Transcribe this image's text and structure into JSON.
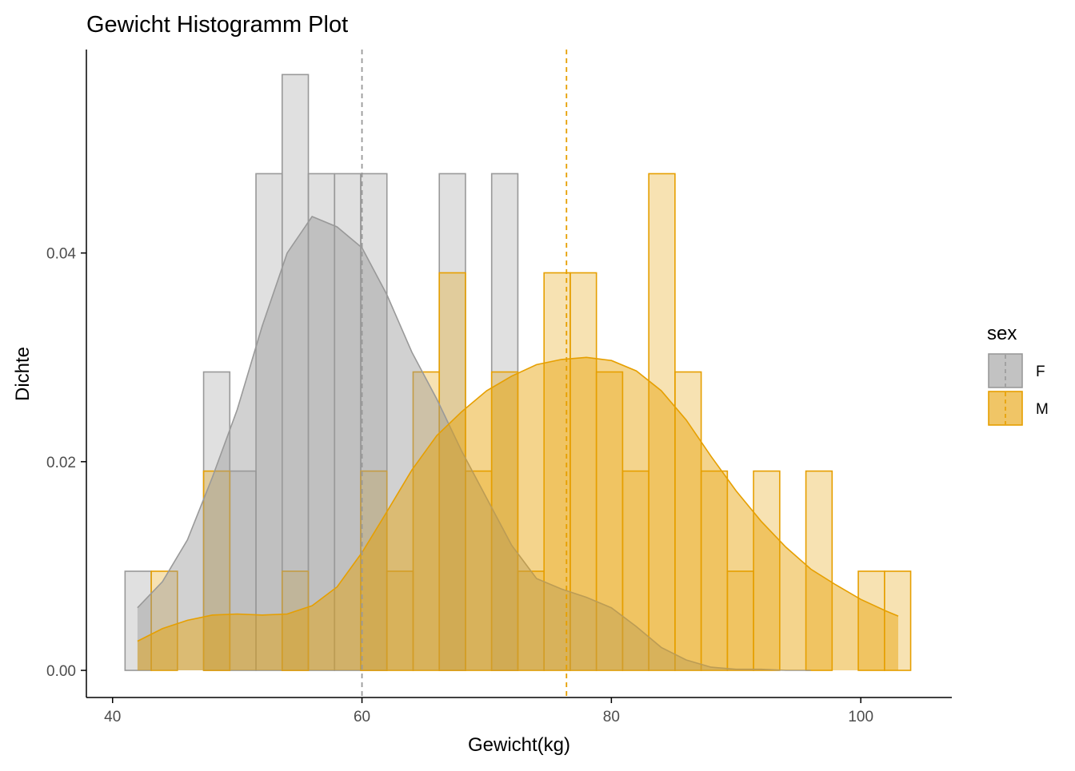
{
  "chart_data": {
    "type": "histogram",
    "title": "Gewicht Histogramm Plot",
    "xlabel": "Gewicht(kg)",
    "ylabel": "Dichte",
    "xlim": [
      37.9,
      107.3
    ],
    "ylim": [
      -0.0026,
      0.0595
    ],
    "x_ticks": [
      40,
      60,
      80,
      100
    ],
    "x_tick_labels": [
      "40",
      "60",
      "80",
      "100"
    ],
    "y_ticks": [
      0.0,
      0.02,
      0.04
    ],
    "y_tick_labels": [
      "0.00",
      "0.02",
      "0.04"
    ],
    "grid": false,
    "bin_width": 2.1,
    "bin_starts": [
      41.0,
      43.1,
      45.2,
      47.3,
      49.4,
      51.5,
      53.6,
      55.7,
      57.8,
      59.9,
      62.0,
      64.1,
      66.2,
      68.3,
      70.4,
      72.5,
      74.6,
      76.7,
      78.8,
      80.9,
      83.0,
      85.1,
      87.2,
      89.3,
      91.4,
      93.5,
      95.6,
      97.7,
      99.8,
      101.9
    ],
    "legend": {
      "title": "sex",
      "position": "right",
      "entries": [
        {
          "label": "F",
          "fill": "#999999",
          "stroke": "#999999"
        },
        {
          "label": "M",
          "fill": "#E69F00",
          "stroke": "#E69F00"
        }
      ]
    },
    "series": [
      {
        "name": "F",
        "color": "#999999",
        "hist_density": [
          0.0095,
          0,
          0,
          0.0286,
          0.0191,
          0.0476,
          0.0571,
          0.0476,
          0.0476,
          0.0476,
          0,
          0,
          0.0476,
          0,
          0.0476,
          0,
          0,
          0,
          0,
          0,
          0,
          0,
          0,
          0,
          0,
          0,
          0,
          0,
          0,
          0
        ],
        "mean": 60.0,
        "density_curve": {
          "x": [
            42,
            44,
            46,
            48,
            50,
            52,
            54,
            56,
            58,
            60,
            62,
            64,
            66,
            68,
            70,
            72,
            74,
            76,
            78,
            80,
            82,
            84,
            86,
            88,
            90,
            92,
            94,
            96
          ],
          "y": [
            0.006,
            0.0085,
            0.0125,
            0.0185,
            0.025,
            0.033,
            0.04,
            0.0435,
            0.0425,
            0.0405,
            0.036,
            0.0305,
            0.026,
            0.021,
            0.0165,
            0.012,
            0.0088,
            0.0078,
            0.007,
            0.006,
            0.0042,
            0.0022,
            0.001,
            0.0003,
            0.0001,
            0.0001,
            0.0,
            0.0
          ]
        }
      },
      {
        "name": "M",
        "color": "#E69F00",
        "hist_density": [
          0,
          0.0095,
          0,
          0.0191,
          0,
          0,
          0.0095,
          0,
          0,
          0.0191,
          0.0095,
          0.0286,
          0.0381,
          0.0191,
          0.0286,
          0.0095,
          0.0381,
          0.0381,
          0.0286,
          0.0191,
          0.0476,
          0.0286,
          0.0191,
          0.0095,
          0.0191,
          0,
          0.0191,
          0,
          0.0095,
          0.0095
        ],
        "mean": 76.4,
        "density_curve": {
          "x": [
            42,
            44,
            46,
            48,
            50,
            52,
            54,
            56,
            58,
            60,
            62,
            64,
            66,
            68,
            70,
            72,
            74,
            76,
            78,
            80,
            82,
            84,
            86,
            88,
            90,
            92,
            94,
            96,
            98,
            100,
            102,
            103
          ],
          "y": [
            0.0028,
            0.004,
            0.0048,
            0.0053,
            0.0054,
            0.0053,
            0.0054,
            0.0062,
            0.008,
            0.0113,
            0.0152,
            0.0192,
            0.0225,
            0.0248,
            0.0268,
            0.0282,
            0.0293,
            0.0298,
            0.03,
            0.0297,
            0.0287,
            0.0268,
            0.024,
            0.0205,
            0.0172,
            0.0143,
            0.0118,
            0.0097,
            0.0082,
            0.0068,
            0.0057,
            0.0052
          ]
        }
      }
    ]
  }
}
